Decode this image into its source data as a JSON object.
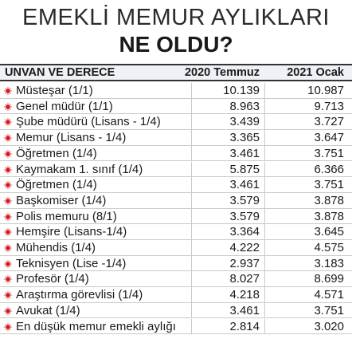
{
  "header": {
    "title": "EMEKLİ MEMUR AYLIKLARI",
    "subtitle": "NE OLDU?"
  },
  "table": {
    "columns": [
      "UNVAN VE DERECE",
      "2020 Temmuz",
      "2021 Ocak"
    ],
    "rows": [
      [
        "Müsteşar (1/1)",
        "10.139",
        "10.987"
      ],
      [
        "Genel müdür (1/1)",
        "8.963",
        "9.713"
      ],
      [
        "Şube müdürü (Lisans - 1/4)",
        "3.439",
        "3.727"
      ],
      [
        "Memur (Lisans - 1/4)",
        "3.365",
        "3.647"
      ],
      [
        "Öğretmen (1/4)",
        "3.461",
        "3.751"
      ],
      [
        "Kaymakam 1. sınıf (1/4)",
        "5.875",
        "6.366"
      ],
      [
        "Öğretmen (1/4)",
        "3.461",
        "3.751"
      ],
      [
        "Başkomiser (1/4)",
        "3.579",
        "3.878"
      ],
      [
        "Polis memuru (8/1)",
        "3.579",
        "3.878"
      ],
      [
        "Hemşire (Lisans-1/4)",
        "3.364",
        "3.645"
      ],
      [
        "Mühendis (1/4)",
        "4.222",
        "4.575"
      ],
      [
        "Teknisyen (Lise -1/4)",
        "2.937",
        "3.183"
      ],
      [
        "Profesör (1/4)",
        "8.027",
        "8.699"
      ],
      [
        "Araştırma görevlisi (1/4)",
        "4.218",
        "4.571"
      ],
      [
        "Avukat (1/4)",
        "3.461",
        "3.751"
      ],
      [
        "En düşük memur emekli aylığı",
        "2.814",
        "3.020"
      ]
    ]
  }
}
